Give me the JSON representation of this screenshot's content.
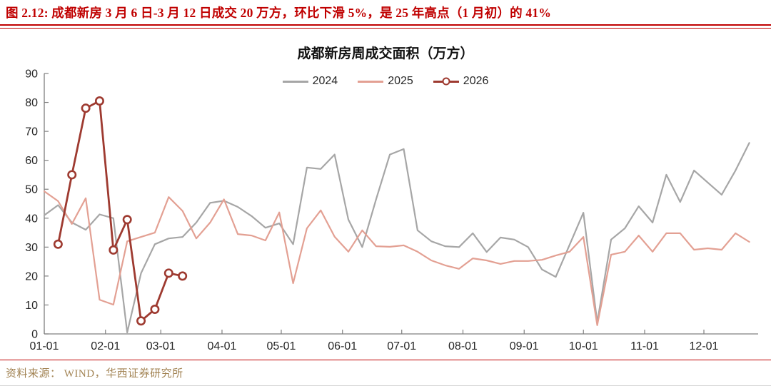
{
  "figure": {
    "title": "图 2.12: 成都新房 3 月 6 日-3 月 12 日成交 20 万方，环比下滑 5%，是 25 年高点（1 月初）的 41%",
    "source": "资料来源： WIND，华西证券研究所"
  },
  "colors": {
    "title_red": "#C00000",
    "separator_red": "#C00000",
    "series_2024": "#A6A6A6",
    "series_2025": "#E3A093",
    "series_2026": "#9E3A30",
    "source_text": "#A28353",
    "axis": "#808080",
    "tick_label": "#262626"
  },
  "chart_data": {
    "type": "line",
    "title": "成都新房周成交面积（万方）",
    "unit": "万方",
    "x_frequency": "weekly",
    "grid": false,
    "legend_position": "top-center",
    "ylim": [
      0,
      90
    ],
    "y_ticks": [
      0,
      10,
      20,
      30,
      40,
      50,
      60,
      70,
      80,
      90
    ],
    "x_ticks": [
      {
        "label": "01-01",
        "day": 1
      },
      {
        "label": "02-01",
        "day": 32
      },
      {
        "label": "03-01",
        "day": 60
      },
      {
        "label": "04-01",
        "day": 91
      },
      {
        "label": "05-01",
        "day": 121
      },
      {
        "label": "06-01",
        "day": 152
      },
      {
        "label": "07-01",
        "day": 182
      },
      {
        "label": "08-01",
        "day": 213
      },
      {
        "label": "09-01",
        "day": 244
      },
      {
        "label": "10-01",
        "day": 274
      },
      {
        "label": "11-01",
        "day": 305
      },
      {
        "label": "12-01",
        "day": 335
      }
    ],
    "series": [
      {
        "name": "2024",
        "color_key": "series_2024",
        "start_week": 0,
        "line_width": 2.2,
        "marker": "none",
        "values": [
          41,
          44.5,
          38.5,
          36,
          41.3,
          40,
          0.5,
          21,
          31,
          33,
          33.5,
          38.5,
          45.3,
          46,
          43.9,
          40.7,
          36.7,
          38.2,
          31,
          57.5,
          57,
          62,
          39.5,
          30,
          46.5,
          62,
          63.9,
          35.8,
          32,
          30.3,
          30,
          34.8,
          28.3,
          33.3,
          32.6,
          30,
          22.3,
          19.7,
          30.8,
          41.9,
          4,
          32.6,
          36.5,
          44.1,
          38.5,
          55,
          45.6,
          56.5,
          52.3,
          48.1,
          56.5,
          66
        ]
      },
      {
        "name": "2025",
        "color_key": "series_2025",
        "start_week": 0,
        "line_width": 2.2,
        "marker": "none",
        "values": [
          49.3,
          45.9,
          38,
          46.9,
          11.8,
          10.1,
          32,
          33.5,
          35,
          47.3,
          42.5,
          33,
          38.5,
          46.5,
          34.5,
          34,
          32.3,
          42,
          17.5,
          36.5,
          42.7,
          33.6,
          28.4,
          35.8,
          30.3,
          30.1,
          30.6,
          28.4,
          25.4,
          23.7,
          22.5,
          26.1,
          25.4,
          24.2,
          25.2,
          25.2,
          25.6,
          27.1,
          28.4,
          33.5,
          3,
          27.4,
          28.4,
          34,
          28.4,
          34.8,
          34.8,
          29.1,
          29.6,
          29.1,
          34.8,
          31.8
        ]
      },
      {
        "name": "2026",
        "color_key": "series_2026",
        "start_week": 1,
        "line_width": 2.8,
        "marker": "circle",
        "values": [
          31,
          55,
          78,
          80.5,
          29,
          39.5,
          4.5,
          8.5,
          21,
          20
        ]
      }
    ]
  }
}
